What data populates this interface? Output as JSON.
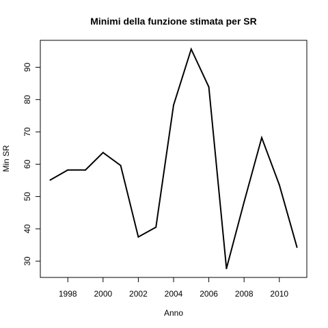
{
  "chart_data": {
    "type": "line",
    "title": "Minimi della funzione stimata per SR",
    "xlabel": "Anno",
    "ylabel": "Min SR",
    "x": [
      1997,
      1998,
      1999,
      2000,
      2001,
      2002,
      2003,
      2004,
      2005,
      2006,
      2007,
      2008,
      2009,
      2010,
      2011
    ],
    "series": [
      {
        "values": [
          55.1,
          58.2,
          58.2,
          63.6,
          59.6,
          37.5,
          40.5,
          78.3,
          95.6,
          83.9,
          27.7,
          48.3,
          68.2,
          53.6,
          34.3
        ],
        "color": "#000000"
      }
    ],
    "xlim": [
      1996.44,
      2011.56
    ],
    "ylim": [
      24.96,
      98.34
    ],
    "x_ticks": [
      1998,
      2000,
      2002,
      2004,
      2006,
      2008,
      2010
    ],
    "x_tick_labels": [
      "1998",
      "2000",
      "2002",
      "2004",
      "2006",
      "2008",
      "2010"
    ],
    "y_ticks": [
      30,
      40,
      50,
      60,
      70,
      80,
      90
    ],
    "y_tick_labels": [
      "30",
      "40",
      "50",
      "60",
      "70",
      "80",
      "90"
    ],
    "grid": false,
    "legend": "none"
  }
}
